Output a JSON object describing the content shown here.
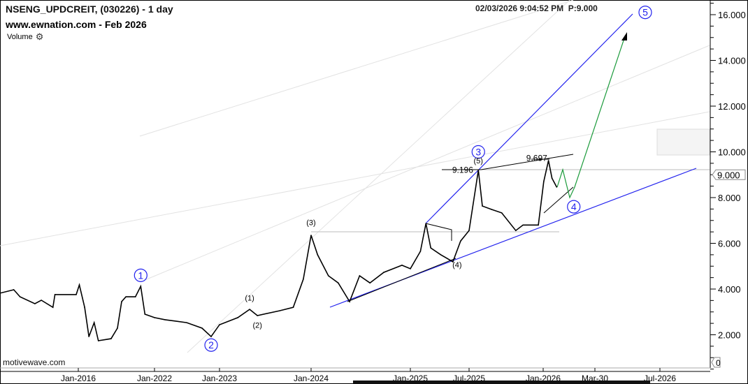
{
  "header": {
    "title": "NSENG_UPDCREIT, (030226) - 1 day",
    "subtitle": "www.ewnation.com  - Feb 2026",
    "volume_label": "Volume",
    "timestamp": "02/03/2026 9:04:52 PM",
    "price_readout": "P:9.000"
  },
  "footer": {
    "brand": "motivewave.com"
  },
  "chart_data": {
    "type": "line",
    "title": "NSENG_UPDCREIT, (030226) - 1 day",
    "x_ticks": [
      {
        "label": "Jan-2016",
        "date": "2016-01-01"
      },
      {
        "label": "Jan-2022",
        "date": "2022-01-01"
      },
      {
        "label": "Jan-2023",
        "date": "2023-01-01"
      },
      {
        "label": "Jan-2024",
        "date": "2024-01-01"
      },
      {
        "label": "Jan-2025",
        "date": "2025-01-01"
      },
      {
        "label": "Jul-2025",
        "date": "2025-07-01"
      },
      {
        "label": "Jan-2026",
        "date": "2026-01-01"
      },
      {
        "label": "Mar-30",
        "date": "2026-03-30"
      },
      {
        "label": "Jul-2026",
        "date": "2026-07-01"
      }
    ],
    "y_ticks": [
      "2.000",
      "4.000",
      "6.000",
      "8.000",
      "10.000",
      "12.000",
      "14.000",
      "16.000"
    ],
    "ylim": [
      0,
      16.6
    ],
    "last_price": "9.000",
    "volume_axis_label": "0",
    "grid": false,
    "colors": {
      "price": "#000000",
      "wave_channel": "#2222ee",
      "projection": "#1a9a3a",
      "level": "#bbbbbb"
    },
    "series": [
      {
        "points": [
          [
            "2009-11-01",
            3.82
          ],
          [
            "2010-12-01",
            3.97
          ],
          [
            "2011-06-01",
            3.66
          ],
          [
            "2012-08-01",
            3.36
          ],
          [
            "2013-02-01",
            3.51
          ],
          [
            "2014-01-01",
            3.2
          ],
          [
            "2014-03-01",
            3.76
          ],
          [
            "2015-11-01",
            3.76
          ],
          [
            "2016-02-01",
            4.18
          ],
          [
            "2016-07-01",
            3.2
          ],
          [
            "2016-11-01",
            1.92
          ],
          [
            "2017-04-01",
            2.53
          ],
          [
            "2017-08-01",
            1.74
          ],
          [
            "2018-08-01",
            1.83
          ],
          [
            "2019-02-01",
            2.29
          ],
          [
            "2019-06-01",
            3.45
          ],
          [
            "2019-10-01",
            3.66
          ],
          [
            "2020-07-01",
            3.66
          ],
          [
            "2020-12-01",
            4.12
          ],
          [
            "2021-04-01",
            2.9
          ],
          [
            "2022-01-01",
            2.75
          ],
          [
            "2022-03-01",
            2.66
          ],
          [
            "2022-07-01",
            2.53
          ],
          [
            "2022-09-25",
            2.29
          ],
          [
            "2022-11-15",
            1.92
          ],
          [
            "2023-01-01",
            2.44
          ],
          [
            "2023-03-15",
            2.75
          ],
          [
            "2023-05-01",
            3.11
          ],
          [
            "2023-06-01",
            2.84
          ],
          [
            "2023-08-28",
            3.05
          ],
          [
            "2023-10-22",
            3.2
          ],
          [
            "2023-12-01",
            4.43
          ],
          [
            "2024-01-01",
            6.35
          ],
          [
            "2024-01-25",
            5.5
          ],
          [
            "2024-03-05",
            4.58
          ],
          [
            "2024-04-10",
            4.27
          ],
          [
            "2024-05-22",
            3.45
          ],
          [
            "2024-06-28",
            4.58
          ],
          [
            "2024-08-05",
            4.27
          ],
          [
            "2024-09-25",
            4.73
          ],
          [
            "2024-12-01",
            5.04
          ],
          [
            "2025-01-01",
            4.89
          ],
          [
            "2025-02-01",
            5.65
          ],
          [
            "2025-02-18",
            6.87
          ],
          [
            "2025-03-05",
            5.8
          ],
          [
            "2025-04-05",
            5.5
          ],
          [
            "2025-05-12",
            5.19
          ],
          [
            "2025-06-05",
            6.1
          ],
          [
            "2025-07-01",
            6.56
          ],
          [
            "2025-07-24",
            9.2
          ],
          [
            "2025-08-03",
            7.63
          ],
          [
            "2025-08-26",
            7.48
          ],
          [
            "2025-09-20",
            7.33
          ],
          [
            "2025-10-25",
            6.56
          ],
          [
            "2025-11-12",
            6.8
          ],
          [
            "2025-12-20",
            6.8
          ],
          [
            "2026-01-02",
            8.7
          ],
          [
            "2026-01-10",
            9.62
          ],
          [
            "2026-01-16",
            8.85
          ],
          [
            "2026-01-24",
            8.46
          ]
        ]
      }
    ],
    "annotations": {
      "major_waves": [
        {
          "label": "1",
          "date": "2020-12-01",
          "price": 4.6
        },
        {
          "label": "2",
          "date": "2022-11-15",
          "price": 1.55
        },
        {
          "label": "3",
          "date": "2025-07-24",
          "price": 10.0
        },
        {
          "label": "4",
          "date": "2026-02-22",
          "price": 7.6
        },
        {
          "label": "5",
          "date": "2026-06-10",
          "price": 16.1
        }
      ],
      "minor_waves": [
        {
          "label": "(1)",
          "date": "2023-05-01",
          "price": 3.5
        },
        {
          "label": "(2)",
          "date": "2023-06-01",
          "price": 2.3
        },
        {
          "label": "(3)",
          "date": "2024-01-01",
          "price": 6.8
        },
        {
          "label": "(4)",
          "date": "2025-05-25",
          "price": 4.95
        },
        {
          "label": "(5)",
          "date": "2025-07-24",
          "price": 9.5
        }
      ],
      "price_labels": [
        {
          "text": "9.196",
          "date": "2025-05-10",
          "price": 9.2
        },
        {
          "text": "9.697",
          "date": "2025-11-20",
          "price": 9.72
        }
      ]
    }
  }
}
